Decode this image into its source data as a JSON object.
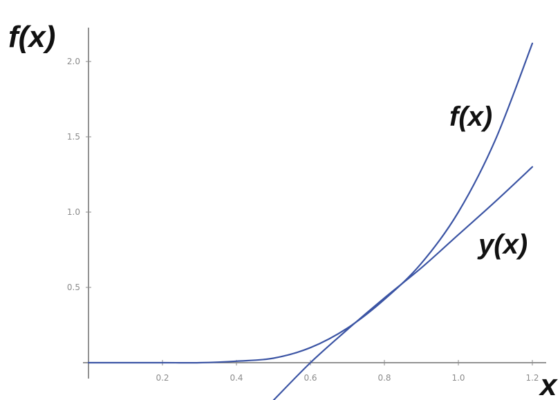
{
  "chart_data": {
    "type": "line",
    "ylabel": "f(x)",
    "xlabel": "x",
    "xlim": [
      0,
      1.22
    ],
    "ylim": [
      0,
      2.2
    ],
    "x_ticks": [
      {
        "value": 0.2,
        "label": "0.2"
      },
      {
        "value": 0.4,
        "label": "0.4"
      },
      {
        "value": 0.6,
        "label": "0.6"
      },
      {
        "value": 0.8,
        "label": "0.8"
      },
      {
        "value": 1.0,
        "label": "1.0"
      },
      {
        "value": 1.2,
        "label": "1.2"
      }
    ],
    "y_ticks": [
      {
        "value": 0.5,
        "label": "0.5"
      },
      {
        "value": 1.0,
        "label": "1.0"
      },
      {
        "value": 1.5,
        "label": "1.5"
      },
      {
        "value": 2.0,
        "label": "2.0"
      }
    ],
    "series": [
      {
        "name": "f(x)",
        "color": "#3b54a4",
        "x": [
          0.0,
          0.2,
          0.3,
          0.4,
          0.5,
          0.6,
          0.7,
          0.8,
          0.9,
          1.0,
          1.1,
          1.2
        ],
        "y": [
          0.0,
          0.0,
          0.0,
          0.01,
          0.03,
          0.1,
          0.23,
          0.42,
          0.66,
          1.0,
          1.48,
          2.12
        ]
      },
      {
        "name": "y(x)",
        "color": "#3b54a4",
        "x": [
          0.5,
          0.6,
          0.7,
          0.8,
          0.9,
          1.0,
          1.1,
          1.2
        ],
        "y": [
          -0.25,
          0.0,
          0.22,
          0.43,
          0.63,
          0.85,
          1.07,
          1.3
        ]
      }
    ],
    "annotations": [
      {
        "text": "f(x)",
        "series": "f(x)"
      },
      {
        "text": "y(x)",
        "series": "y(x)"
      }
    ],
    "grid": false,
    "legend": "none"
  }
}
